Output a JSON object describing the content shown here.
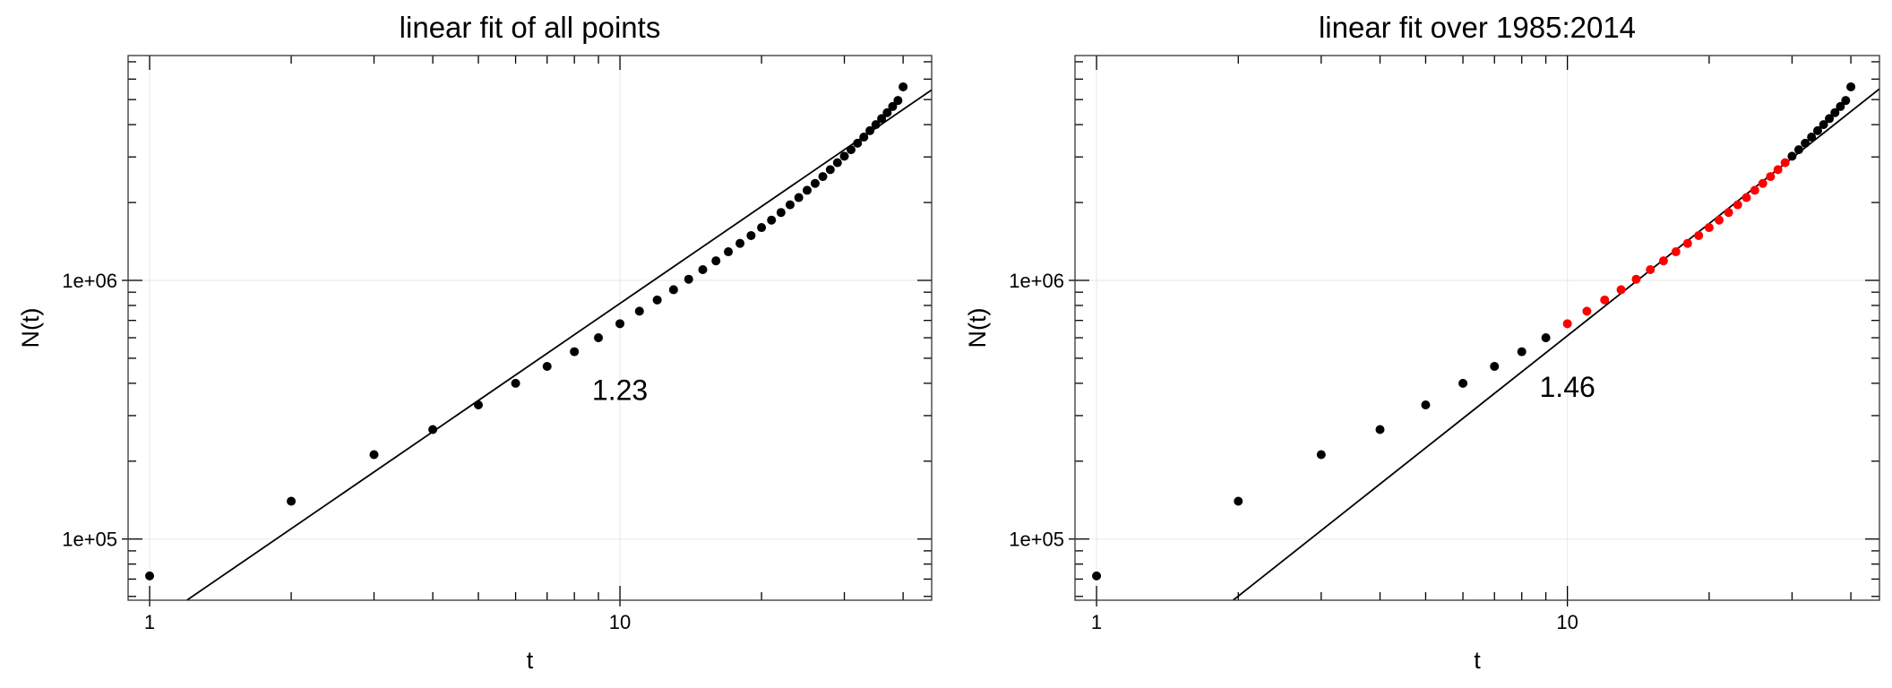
{
  "chart_data": [
    {
      "type": "scatter",
      "title": "linear fit of all points",
      "xlabel": "t",
      "ylabel": "N(t)",
      "x_scale": "log",
      "y_scale": "log",
      "xlim": [
        0.9,
        46
      ],
      "ylim": [
        58000,
        7400000
      ],
      "x_ticks": [
        {
          "v": 1,
          "label": "1"
        },
        {
          "v": 10,
          "label": "10"
        }
      ],
      "y_ticks": [
        {
          "v": 100000,
          "label": "1e+05"
        },
        {
          "v": 1000000,
          "label": "1e+06"
        }
      ],
      "annotation": "1.23",
      "annotation_at": {
        "t": 10,
        "n": 380000
      },
      "fit_slope": 1.23,
      "fit_line": [
        [
          1.2,
          58000
        ],
        [
          46,
          5450000
        ]
      ],
      "grid": true,
      "highlight_range": null,
      "point_color": "#000000",
      "highlight_color": "#ff0000",
      "points": {
        "t": [
          1,
          2,
          3,
          4,
          5,
          6,
          7,
          8,
          9,
          10,
          11,
          12,
          13,
          14,
          15,
          16,
          17,
          18,
          19,
          20,
          21,
          22,
          23,
          24,
          25,
          26,
          27,
          28,
          29,
          30,
          31,
          32,
          33,
          34,
          35,
          36,
          37,
          38,
          39,
          40
        ],
        "n": [
          72000,
          140000,
          212000,
          265000,
          330000,
          400000,
          465000,
          530000,
          600000,
          680000,
          760000,
          840000,
          920000,
          1010000,
          1100000,
          1190000,
          1290000,
          1390000,
          1490000,
          1600000,
          1710000,
          1830000,
          1960000,
          2090000,
          2230000,
          2370000,
          2520000,
          2680000,
          2850000,
          3020000,
          3200000,
          3390000,
          3580000,
          3790000,
          4000000,
          4220000,
          4450000,
          4700000,
          4960000,
          5600000
        ]
      }
    },
    {
      "type": "scatter",
      "title": "linear fit over 1985:2014",
      "xlabel": "t",
      "ylabel": "N(t)",
      "x_scale": "log",
      "y_scale": "log",
      "xlim": [
        0.9,
        46
      ],
      "ylim": [
        58000,
        7400000
      ],
      "x_ticks": [
        {
          "v": 1,
          "label": "1"
        },
        {
          "v": 10,
          "label": "10"
        }
      ],
      "y_ticks": [
        {
          "v": 100000,
          "label": "1e+05"
        },
        {
          "v": 1000000,
          "label": "1e+06"
        }
      ],
      "annotation": "1.46",
      "annotation_at": {
        "t": 10,
        "n": 390000
      },
      "fit_slope": 1.46,
      "fit_line": [
        [
          1.95,
          58000
        ],
        [
          46,
          5500000
        ]
      ],
      "grid": true,
      "highlight_range": [
        10,
        29
      ],
      "point_color": "#000000",
      "highlight_color": "#ff0000",
      "points": {
        "t": [
          1,
          2,
          3,
          4,
          5,
          6,
          7,
          8,
          9,
          10,
          11,
          12,
          13,
          14,
          15,
          16,
          17,
          18,
          19,
          20,
          21,
          22,
          23,
          24,
          25,
          26,
          27,
          28,
          29,
          30,
          31,
          32,
          33,
          34,
          35,
          36,
          37,
          38,
          39,
          40
        ],
        "n": [
          72000,
          140000,
          212000,
          265000,
          330000,
          400000,
          465000,
          530000,
          600000,
          680000,
          760000,
          840000,
          920000,
          1010000,
          1100000,
          1190000,
          1290000,
          1390000,
          1490000,
          1600000,
          1710000,
          1830000,
          1960000,
          2090000,
          2230000,
          2370000,
          2520000,
          2680000,
          2850000,
          3020000,
          3200000,
          3390000,
          3580000,
          3790000,
          4000000,
          4220000,
          4450000,
          4700000,
          4960000,
          5600000
        ]
      }
    }
  ]
}
